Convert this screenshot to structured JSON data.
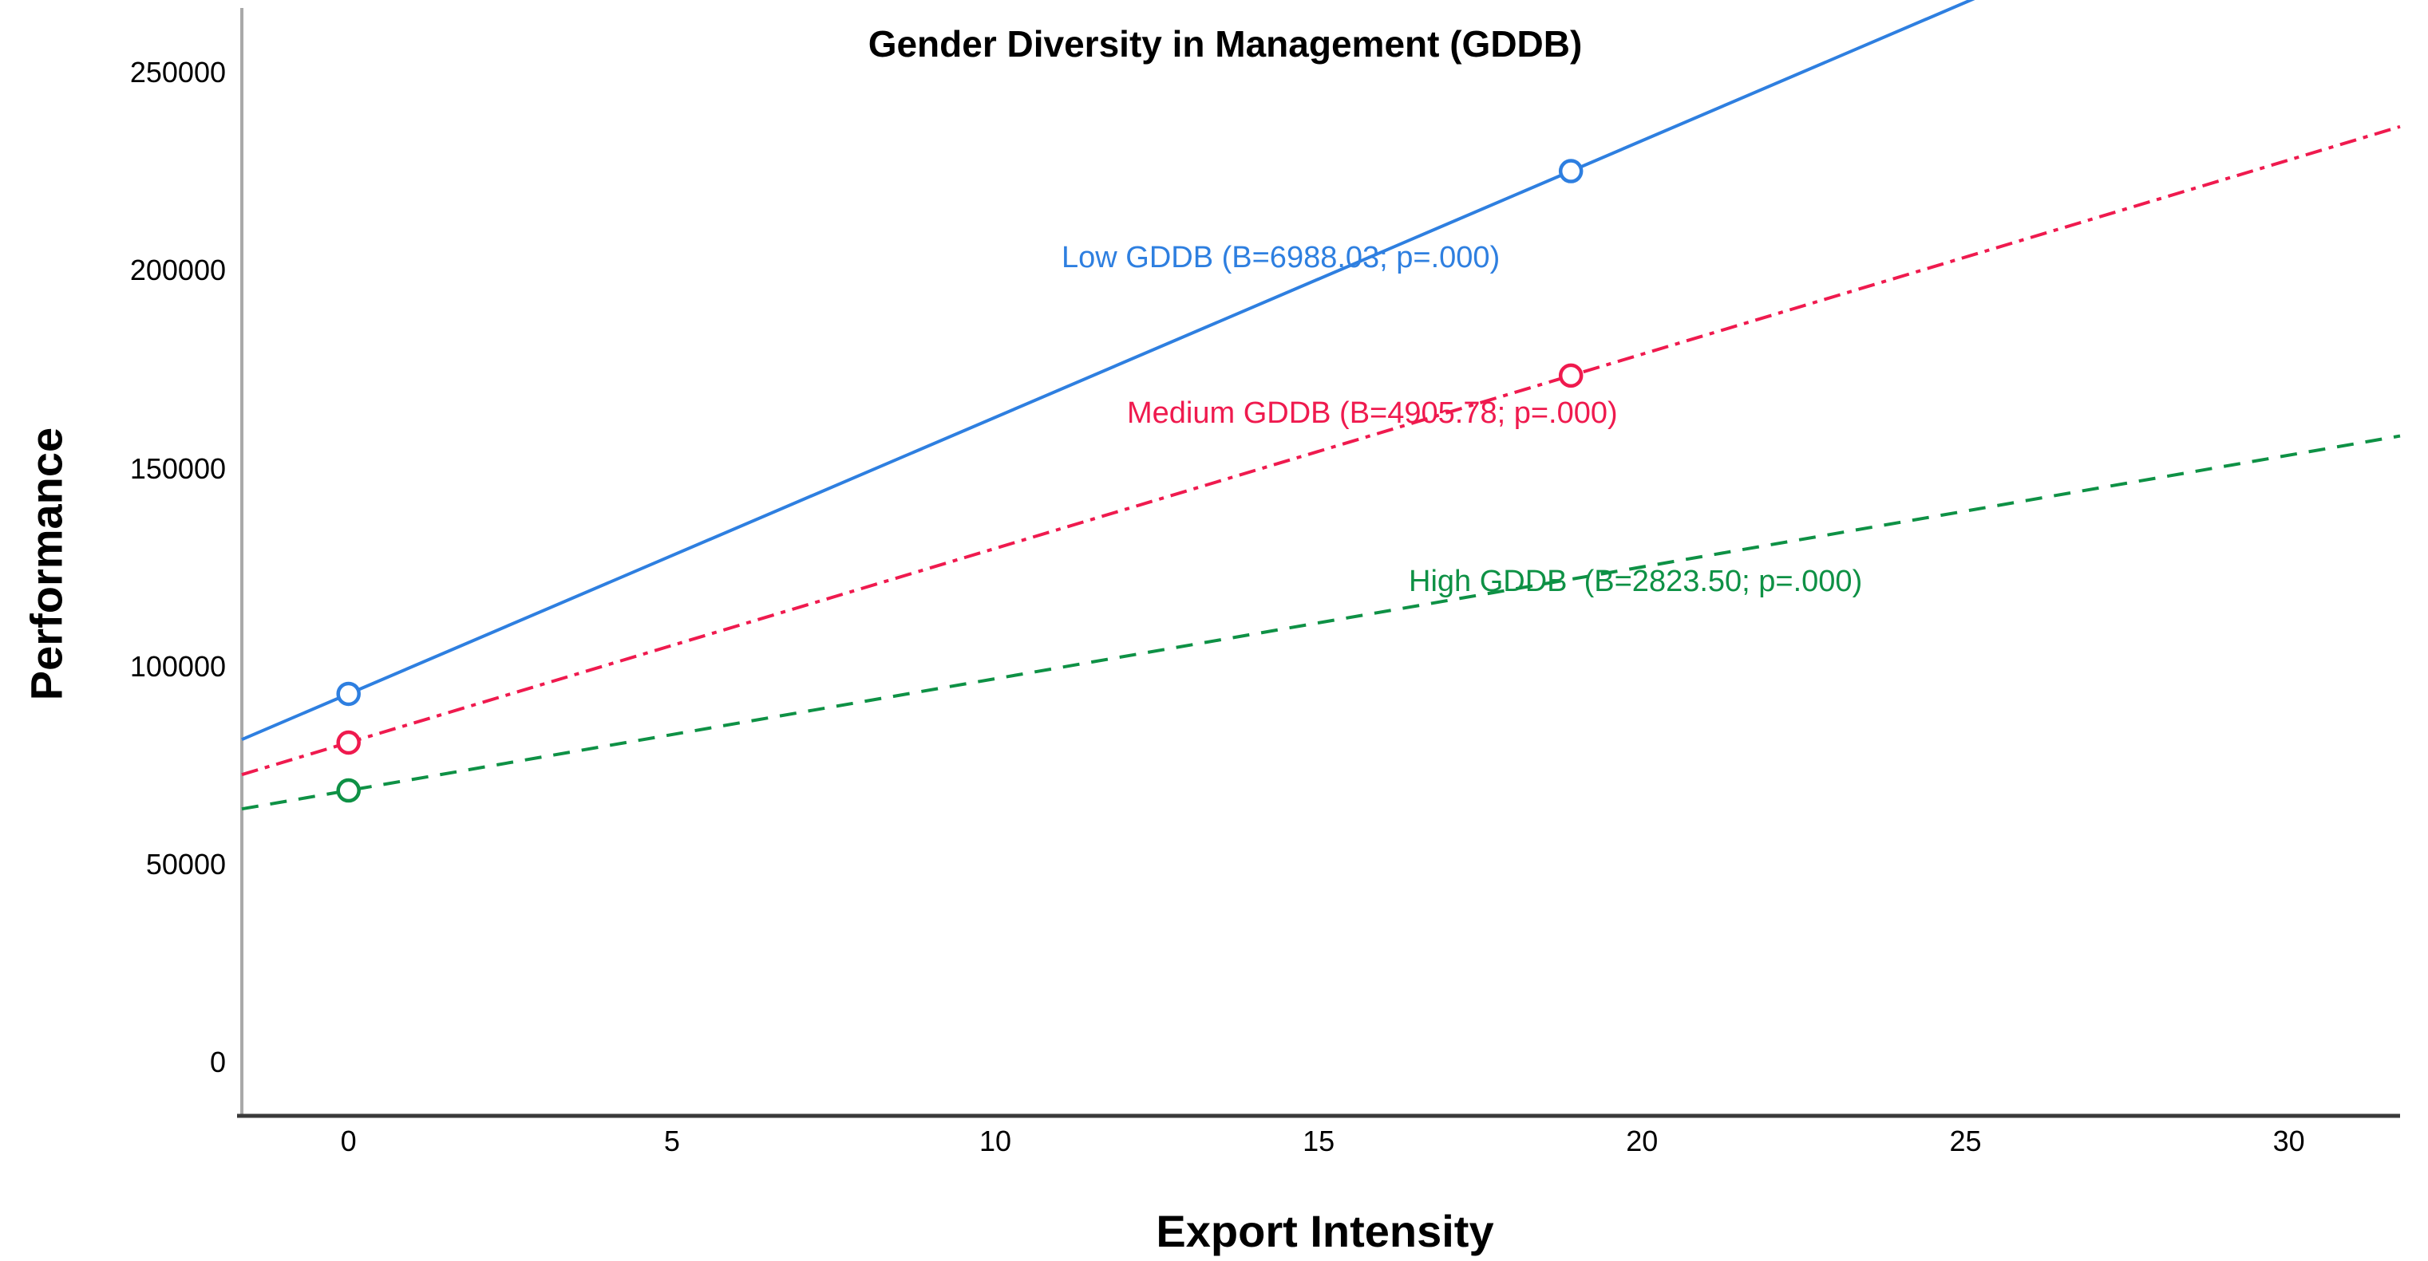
{
  "chart_data": {
    "type": "line",
    "title": "Gender Diversity in Management (GDDB)",
    "xlabel": "Export Intensity",
    "ylabel": "Performance",
    "x_ticks": [
      0,
      5,
      10,
      15,
      20,
      25,
      30
    ],
    "y_ticks": [
      0,
      50000,
      100000,
      150000,
      200000,
      250000
    ],
    "xlim": [
      -1.65,
      31.72
    ],
    "ylim": [
      -13300,
      268600
    ],
    "grid": false,
    "legend": "inline-colored-labels",
    "axis_line_color_x": "#3a3a3a",
    "axis_line_color_y": "#a9a9a9",
    "text_color": "#000000",
    "series": [
      {
        "name": "Low GDDB",
        "label": "Low GDDB (B=6988.03; p=.000)",
        "B": 6988.03,
        "p": ".000",
        "intercept": 93300,
        "slope": 6988.03,
        "style": "solid",
        "color": "#2E7FE0",
        "markers": [
          {
            "x": 0,
            "y": 93300
          },
          {
            "x": 18.9,
            "y": 225370
          }
        ]
      },
      {
        "name": "Medium GDDB",
        "label": "Medium GDDB (B=4905.78; p=.000)",
        "B": 4905.78,
        "p": ".000",
        "intercept": 81000,
        "slope": 4905.78,
        "style": "dashdot",
        "color": "#EF1A4E",
        "markers": [
          {
            "x": 0,
            "y": 81000
          },
          {
            "x": 18.9,
            "y": 173720
          }
        ]
      },
      {
        "name": "High GDDB",
        "label": "High GDDB  (B=2823.50; p=.000)",
        "B": 2823.5,
        "p": ".000",
        "intercept": 68900,
        "slope": 2823.5,
        "style": "dashed",
        "color": "#0E9145",
        "markers": [
          {
            "x": 0,
            "y": 68900
          }
        ]
      }
    ]
  }
}
